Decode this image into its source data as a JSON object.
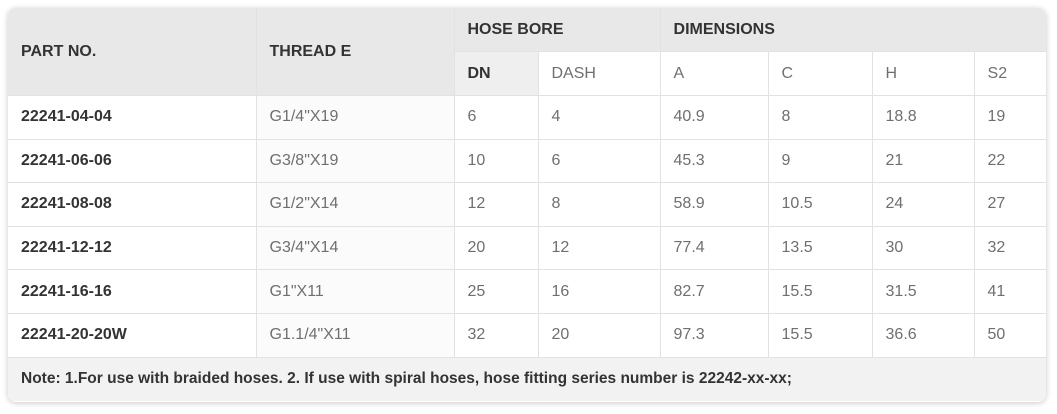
{
  "table": {
    "headers": {
      "part_no": "PART NO.",
      "thread_e": "THREAD E",
      "hose_bore": "HOSE BORE",
      "dimensions": "DIMENSIONS",
      "dn": "DN",
      "dash": "DASH",
      "a": "A",
      "c": "C",
      "h": "H",
      "s2": "S2"
    },
    "rows": [
      {
        "part_no": "22241-04-04",
        "thread_e": "G1/4\"X19",
        "dn": "6",
        "dash": "4",
        "a": "40.9",
        "c": "8",
        "h": "18.8",
        "s2": "19"
      },
      {
        "part_no": "22241-06-06",
        "thread_e": "G3/8\"X19",
        "dn": "10",
        "dash": "6",
        "a": "45.3",
        "c": "9",
        "h": "21",
        "s2": "22"
      },
      {
        "part_no": "22241-08-08",
        "thread_e": "G1/2\"X14",
        "dn": "12",
        "dash": "8",
        "a": "58.9",
        "c": "10.5",
        "h": "24",
        "s2": "27"
      },
      {
        "part_no": "22241-12-12",
        "thread_e": "G3/4\"X14",
        "dn": "20",
        "dash": "12",
        "a": "77.4",
        "c": "13.5",
        "h": "30",
        "s2": "32"
      },
      {
        "part_no": "22241-16-16",
        "thread_e": "G1\"X11",
        "dn": "25",
        "dash": "16",
        "a": "82.7",
        "c": "15.5",
        "h": "31.5",
        "s2": "41"
      },
      {
        "part_no": "22241-20-20W",
        "thread_e": "G1.1/4\"X11",
        "dn": "32",
        "dash": "20",
        "a": "97.3",
        "c": "15.5",
        "h": "36.6",
        "s2": "50"
      }
    ],
    "note": "Note: 1.For use with braided hoses. 2. If use with spiral hoses, hose fitting series number is 22242-xx-xx;"
  }
}
